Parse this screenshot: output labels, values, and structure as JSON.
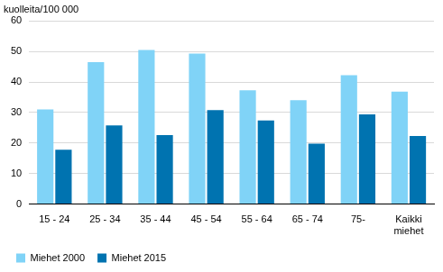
{
  "chart_data": {
    "type": "bar",
    "ylabel": "kuolleita/100 000",
    "categories": [
      "15 - 24",
      "25 - 34",
      "35 - 44",
      "45 - 54",
      "55 - 64",
      "65 - 74",
      "75-",
      [
        "Kaikki",
        "miehet"
      ]
    ],
    "series": [
      {
        "name": "Miehet 2000",
        "color": "#80d3f7",
        "values": [
          31,
          46.5,
          50.5,
          49.3,
          37.3,
          34,
          42.2,
          36.8
        ]
      },
      {
        "name": "Miehet 2015",
        "color": "#0073b0",
        "values": [
          17.8,
          25.8,
          22.6,
          30.8,
          27.4,
          19.8,
          29.4,
          22.3
        ]
      }
    ],
    "ylim": [
      0,
      60
    ],
    "yticks": [
      0,
      10,
      20,
      30,
      40,
      50,
      60
    ],
    "grid": true,
    "legend": "bottom"
  }
}
